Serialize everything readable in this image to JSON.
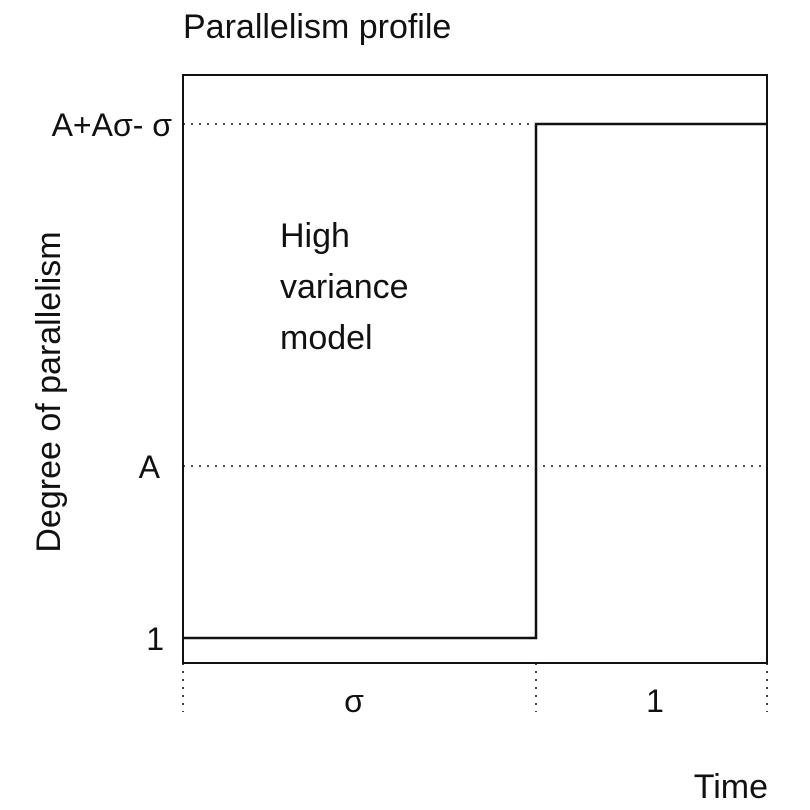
{
  "chart_data": {
    "type": "line",
    "title": "Parallelism profile",
    "xlabel": "Time",
    "ylabel": "Degree of parallelism",
    "y_ticks": [
      "1",
      "A",
      "A+Aσ- σ"
    ],
    "x_intervals": [
      "σ",
      "1"
    ],
    "annotation": [
      "High",
      "variance",
      "model"
    ],
    "series": [
      {
        "points": [
          {
            "x": "0",
            "y": "1"
          },
          {
            "x": "σ",
            "y": "1"
          },
          {
            "x": "σ",
            "y": "A+Aσ- σ"
          },
          {
            "x": "σ+1",
            "y": "A+Aσ- σ"
          }
        ]
      }
    ],
    "grid": false
  }
}
